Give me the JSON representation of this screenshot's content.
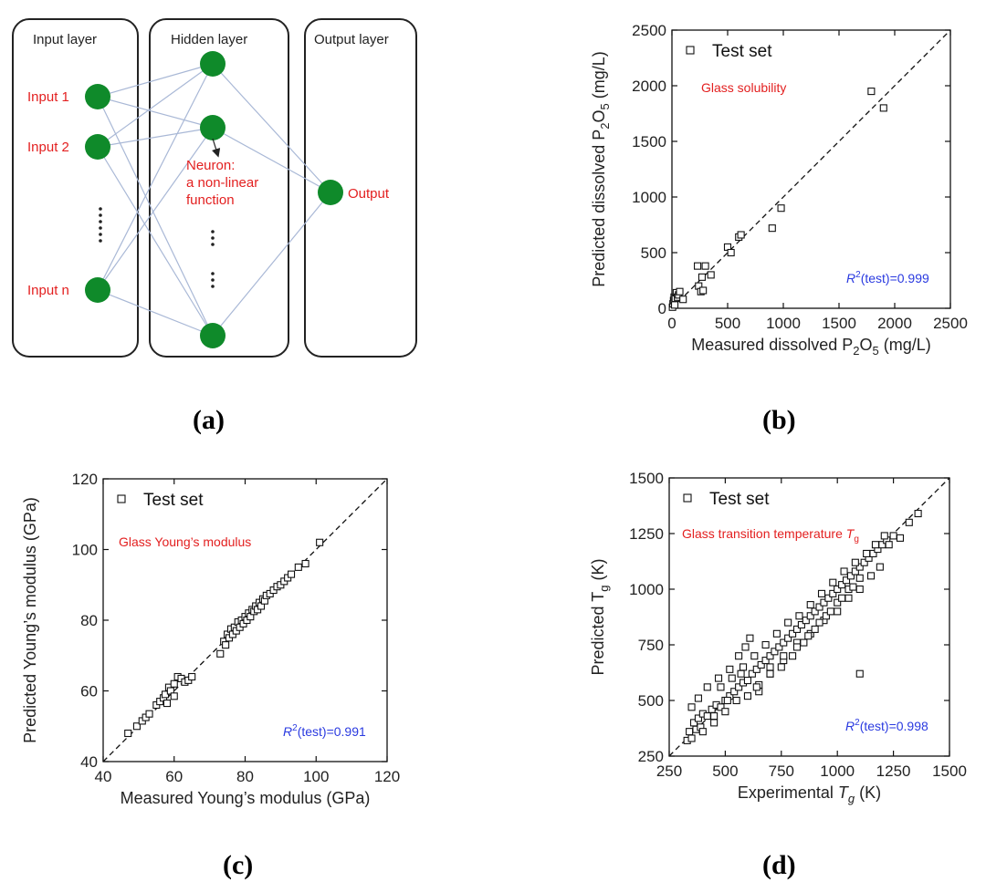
{
  "panel_a": {
    "labels": {
      "input_layer": "Input layer",
      "hidden_layer": "Hidden layer",
      "output_layer": "Output layer",
      "input1": "Input 1",
      "input2": "Input 2",
      "inputn": "Input n",
      "output": "Output",
      "neuron_line1": "Neuron:",
      "neuron_line2": "a non-linear",
      "neuron_line3": "function"
    },
    "caption": "(a)"
  },
  "captions": {
    "b": "(b)",
    "c": "(c)",
    "d": "(d)"
  },
  "colors": {
    "node": "#0f8a2a",
    "edge": "#a9b8d6",
    "red": "#e32020",
    "blue": "#2a3ae0"
  },
  "chart_data": [
    {
      "id": "b",
      "type": "scatter",
      "title": "",
      "xlabel_parts": [
        "Measured dissolved P",
        "2",
        "O",
        "5",
        " (mg/L)"
      ],
      "ylabel_parts": [
        "Predicted dissolved P",
        "2",
        "O",
        "5",
        " (mg/L)"
      ],
      "xlim": [
        0,
        2500
      ],
      "ylim": [
        0,
        2500
      ],
      "xticks": [
        0,
        500,
        1000,
        1500,
        2000,
        2500
      ],
      "yticks": [
        0,
        500,
        1000,
        1500,
        2000,
        2500
      ],
      "legend": "Test set",
      "annotation": {
        "parts": [
          "Glass solubility"
        ]
      },
      "r2": {
        "sup": "2",
        "text": "(test)=0.999"
      },
      "series": [
        {
          "name": "Test set",
          "x": [
            5,
            10,
            15,
            20,
            25,
            30,
            40,
            50,
            60,
            70,
            100,
            230,
            240,
            260,
            270,
            280,
            300,
            350,
            500,
            530,
            600,
            620,
            900,
            980,
            1790,
            1900
          ],
          "y": [
            10,
            40,
            70,
            100,
            30,
            90,
            140,
            100,
            120,
            150,
            80,
            380,
            200,
            150,
            280,
            160,
            380,
            300,
            550,
            500,
            640,
            660,
            720,
            900,
            1950,
            1800
          ]
        }
      ]
    },
    {
      "id": "c",
      "type": "scatter",
      "title": "",
      "xlabel_parts": [
        "Measured Young’s modulus (GPa)"
      ],
      "ylabel_parts": [
        "Predicted Young’s modulus (GPa)"
      ],
      "xlim": [
        40,
        120
      ],
      "ylim": [
        40,
        120
      ],
      "xticks": [
        40,
        60,
        80,
        100,
        120
      ],
      "yticks": [
        40,
        60,
        80,
        100,
        120
      ],
      "legend": "Test set",
      "annotation": {
        "parts": [
          "Glass Young’s modulus"
        ]
      },
      "r2": {
        "sup": "2",
        "text": "(test)=0.991"
      },
      "series": [
        {
          "name": "Test set",
          "x": [
            47,
            49.5,
            51,
            52,
            53,
            55,
            56,
            57,
            57.5,
            58,
            58.5,
            59,
            60,
            60,
            61,
            62,
            63,
            64,
            65,
            73,
            74,
            74.5,
            75,
            75.5,
            76,
            76.5,
            77,
            77.5,
            78,
            78.5,
            79,
            79.5,
            80,
            80.5,
            81,
            81.5,
            82,
            82.5,
            83,
            83.5,
            84,
            84.5,
            85,
            85.5,
            86,
            87,
            88,
            89,
            90,
            91,
            92,
            93,
            95,
            97,
            101
          ],
          "y": [
            48,
            50,
            51.5,
            52.5,
            53.5,
            56,
            57,
            58,
            59,
            56.5,
            61,
            60,
            58.5,
            62,
            64,
            63.5,
            62.5,
            63,
            64,
            70.5,
            74,
            73,
            76,
            75,
            77.5,
            76,
            78,
            77,
            79.5,
            78,
            80,
            79,
            81,
            80,
            82,
            81,
            83,
            82.5,
            84,
            83,
            85,
            84,
            86,
            85.5,
            87,
            87.5,
            88.5,
            89.5,
            90,
            91,
            92,
            93,
            95,
            96,
            102
          ]
        }
      ]
    },
    {
      "id": "d",
      "type": "scatter",
      "title": "",
      "xlabel_parts": [
        "Experimental ",
        "T",
        "g",
        " (K)"
      ],
      "ylabel_parts": [
        "Predicted T",
        "g",
        " (K)"
      ],
      "xlim": [
        250,
        1500
      ],
      "ylim": [
        250,
        1500
      ],
      "xticks": [
        250,
        500,
        750,
        1000,
        1250,
        1500
      ],
      "yticks": [
        250,
        500,
        750,
        1000,
        1250,
        1500
      ],
      "legend": "Test set",
      "annotation": {
        "parts": [
          "Glass transition temperature ",
          "T",
          "g"
        ]
      },
      "r2": {
        "sup": "2",
        "text": "(test)=0.998"
      },
      "series": [
        {
          "name": "Test set",
          "x": [
            330,
            340,
            350,
            360,
            370,
            380,
            390,
            400,
            420,
            440,
            460,
            480,
            500,
            520,
            540,
            560,
            580,
            600,
            620,
            640,
            660,
            680,
            700,
            720,
            740,
            760,
            780,
            800,
            820,
            840,
            860,
            880,
            900,
            920,
            940,
            960,
            980,
            1000,
            1020,
            1040,
            1060,
            1080,
            1100,
            1120,
            1140,
            1160,
            1180,
            1200,
            1220,
            1250,
            1280,
            1320,
            1360,
            350,
            380,
            420,
            470,
            520,
            560,
            590,
            610,
            650,
            700,
            760,
            820,
            880,
            940,
            1000,
            1050,
            1100,
            1150,
            1190,
            1230,
            400,
            450,
            500,
            550,
            600,
            650,
            700,
            750,
            800,
            850,
            900,
            950,
            1000,
            1050,
            1100,
            480,
            530,
            580,
            630,
            680,
            730,
            780,
            830,
            880,
            930,
            980,
            1030,
            1080,
            1130,
            1170,
            1210,
            450,
            510,
            570,
            640,
            700,
            760,
            820,
            870,
            920,
            970,
            1020,
            1070,
            1100
          ],
          "y": [
            320,
            360,
            330,
            400,
            370,
            420,
            380,
            440,
            430,
            460,
            480,
            470,
            500,
            520,
            540,
            560,
            580,
            590,
            620,
            640,
            660,
            680,
            700,
            720,
            740,
            760,
            780,
            800,
            820,
            840,
            860,
            880,
            900,
            920,
            940,
            960,
            980,
            1000,
            1020,
            1040,
            1060,
            1080,
            1100,
            1120,
            1140,
            1160,
            1180,
            1200,
            1220,
            1240,
            1230,
            1300,
            1340,
            470,
            510,
            560,
            600,
            640,
            700,
            740,
            780,
            540,
            620,
            680,
            760,
            800,
            860,
            900,
            960,
            1000,
            1060,
            1100,
            1200,
            360,
            400,
            450,
            500,
            520,
            570,
            620,
            650,
            700,
            760,
            820,
            880,
            940,
            1000,
            1050,
            560,
            600,
            650,
            700,
            750,
            800,
            850,
            880,
            930,
            980,
            1030,
            1080,
            1120,
            1160,
            1200,
            1240,
            430,
            500,
            620,
            560,
            650,
            700,
            740,
            790,
            850,
            900,
            960,
            1010,
            620
          ]
        }
      ]
    }
  ]
}
